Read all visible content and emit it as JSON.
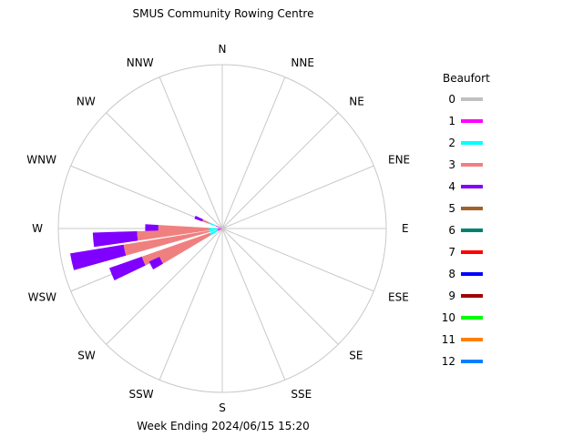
{
  "chart_data": {
    "type": "wind-rose",
    "title": "SMUS Community Rowing Centre",
    "subtitle": "Week Ending 2024/06/15 15:20",
    "directions": [
      "N",
      "NNE",
      "NE",
      "ENE",
      "E",
      "ESE",
      "SE",
      "SSE",
      "S",
      "SSW",
      "SW",
      "WSW",
      "W",
      "WNW",
      "NW",
      "NNW"
    ],
    "legend": {
      "title": "Beaufort",
      "entries": [
        {
          "label": "0",
          "color": "#c0c0c0"
        },
        {
          "label": "1",
          "color": "#ff00ff"
        },
        {
          "label": "2",
          "color": "#00ffff"
        },
        {
          "label": "3",
          "color": "#f08080"
        },
        {
          "label": "4",
          "color": "#8000ff"
        },
        {
          "label": "5",
          "color": "#a0612a"
        },
        {
          "label": "6",
          "color": "#008070"
        },
        {
          "label": "7",
          "color": "#ff0000"
        },
        {
          "label": "8",
          "color": "#0000ff"
        },
        {
          "label": "9",
          "color": "#a00000"
        },
        {
          "label": "10",
          "color": "#00ff00"
        },
        {
          "label": "11",
          "color": "#ff8000"
        },
        {
          "label": "12",
          "color": "#0080ff"
        }
      ]
    },
    "radius_max": 1.0,
    "bins": [
      {
        "direction_deg": 292.5,
        "stacks": [
          {
            "beaufort": "1",
            "value": 0.04
          },
          {
            "beaufort": "2",
            "value": 0.05
          },
          {
            "beaufort": "3",
            "value": 0.04
          },
          {
            "beaufort": "4",
            "value": 0.05
          }
        ]
      },
      {
        "direction_deg": 270.0,
        "stacks": [
          {
            "beaufort": "1",
            "value": 0.03
          },
          {
            "beaufort": "2",
            "value": 0.05
          },
          {
            "beaufort": "3",
            "value": 0.31
          },
          {
            "beaufort": "4",
            "value": 0.08
          }
        ]
      },
      {
        "direction_deg": 265.0,
        "stacks": [
          {
            "beaufort": "1",
            "value": 0.03
          },
          {
            "beaufort": "2",
            "value": 0.05
          },
          {
            "beaufort": "3",
            "value": 0.44
          },
          {
            "beaufort": "4",
            "value": 0.27
          }
        ]
      },
      {
        "direction_deg": 257.5,
        "stacks": [
          {
            "beaufort": "1",
            "value": 0.03
          },
          {
            "beaufort": "2",
            "value": 0.05
          },
          {
            "beaufort": "3",
            "value": 0.53
          },
          {
            "beaufort": "4",
            "value": 0.33
          }
        ]
      },
      {
        "direction_deg": 247.5,
        "stacks": [
          {
            "beaufort": "1",
            "value": 0.03
          },
          {
            "beaufort": "2",
            "value": 0.05
          },
          {
            "beaufort": "3",
            "value": 0.44
          },
          {
            "beaufort": "4",
            "value": 0.21
          }
        ]
      },
      {
        "direction_deg": 242.5,
        "stacks": [
          {
            "beaufort": "1",
            "value": 0.03
          },
          {
            "beaufort": "2",
            "value": 0.05
          },
          {
            "beaufort": "3",
            "value": 0.34
          },
          {
            "beaufort": "4",
            "value": 0.07
          }
        ]
      }
    ]
  }
}
